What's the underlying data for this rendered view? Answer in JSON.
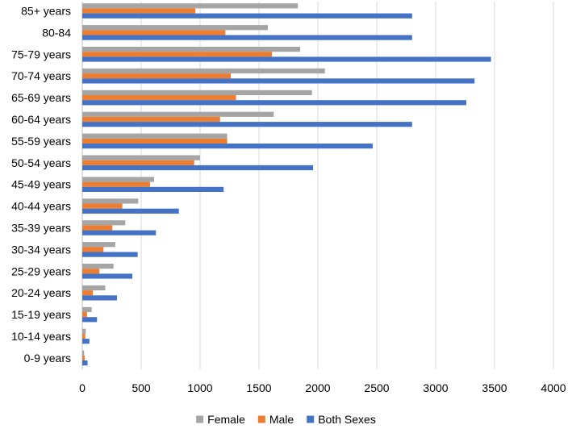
{
  "chart_data": {
    "type": "bar",
    "orientation": "horizontal",
    "title": "",
    "xlabel": "",
    "ylabel": "",
    "xlim": [
      0,
      4000
    ],
    "xticks": [
      0,
      500,
      1000,
      1500,
      2000,
      2500,
      3000,
      3500,
      4000
    ],
    "grid": true,
    "legend_position": "bottom",
    "categories": [
      "85+ years",
      "80-84",
      "75-79 years",
      "70-74 years",
      "65-69 years",
      "60-64 years",
      "55-59 years",
      "50-54 years",
      "45-49 years",
      "40-44 years",
      "35-39 years",
      "30-34 years",
      "25-29 years",
      "20-24 years",
      "15-19 years",
      "10-14 years",
      "0-9 years"
    ],
    "series": [
      {
        "name": "Female",
        "color": "#A5A5A5",
        "values": [
          1830,
          1575,
          1850,
          2060,
          1950,
          1625,
          1230,
          1000,
          610,
          475,
          365,
          280,
          265,
          195,
          80,
          30,
          15
        ]
      },
      {
        "name": "Male",
        "color": "#ED7D31",
        "values": [
          960,
          1215,
          1610,
          1260,
          1305,
          1170,
          1230,
          950,
          575,
          340,
          255,
          180,
          145,
          90,
          40,
          25,
          20
        ]
      },
      {
        "name": "Both Sexes",
        "color": "#4472C4",
        "values": [
          2800,
          2800,
          3470,
          3330,
          3260,
          2800,
          2465,
          1960,
          1200,
          820,
          625,
          470,
          425,
          295,
          125,
          60,
          45
        ]
      }
    ]
  }
}
